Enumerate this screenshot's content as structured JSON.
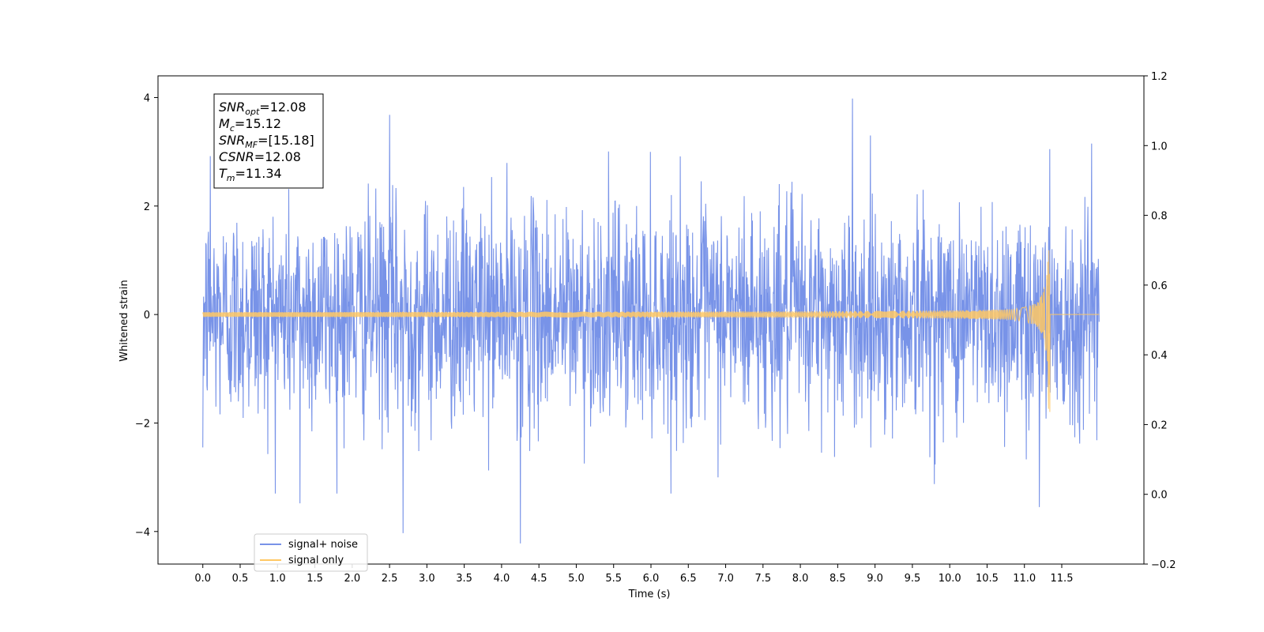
{
  "chart_data": {
    "type": "line",
    "xlabel": "Time (s)",
    "ylabel": "Whitened strain",
    "xlim": [
      -0.6,
      12.6
    ],
    "ylim": [
      -4.6,
      4.4
    ],
    "ylim_right": [
      -0.2,
      1.2
    ],
    "x_ticks": [
      "0.0",
      "0.5",
      "1.0",
      "1.5",
      "2.0",
      "2.5",
      "3.0",
      "3.5",
      "4.0",
      "4.5",
      "5.0",
      "5.5",
      "6.0",
      "6.5",
      "7.0",
      "7.5",
      "8.0",
      "8.5",
      "9.0",
      "9.5",
      "10.0",
      "10.5",
      "11.0",
      "11.5"
    ],
    "y_ticks": [
      "4",
      "2",
      "0",
      "−2",
      "−4"
    ],
    "y_ticks_right": [
      "1.2",
      "1.0",
      "0.8",
      "0.6",
      "0.4",
      "0.2",
      "0.0",
      "−0.2"
    ],
    "grid": false,
    "legend_position": "bottom-left",
    "series": [
      {
        "name": "signal+ noise",
        "color": "#7893e8",
        "description_of_shape": "dense noise approx ±1.3 rms between 0.0 and 12.0 s",
        "max": 3.98,
        "min": -4.22,
        "peaks": [
          [
            0.1,
            2.92
          ],
          [
            2.5,
            3.68
          ],
          [
            8.7,
            3.98
          ],
          [
            11.34,
            3.05
          ],
          [
            11.9,
            3.15
          ]
        ],
        "troughs": [
          [
            0.0,
            -2.45
          ],
          [
            1.3,
            -3.48
          ],
          [
            2.68,
            -4.03
          ],
          [
            4.25,
            -4.22
          ],
          [
            11.2,
            -3.55
          ]
        ]
      },
      {
        "name": "signal only",
        "color": "#ffc864",
        "description_of_shape": "chirp growing in amplitude and frequency, merger at 11.34 s, flat after",
        "merger_time": 11.34,
        "peak_amplitude": 1.82
      }
    ],
    "annotation": {
      "lines": [
        {
          "sym": "SNR",
          "sub": "opt",
          "val": "=12.08"
        },
        {
          "sym": "M",
          "sub": "c",
          "val": "=15.12"
        },
        {
          "sym": "SNR",
          "sub": "MF",
          "val": "=[15.18]"
        },
        {
          "sym": "CSNR",
          "sub": "",
          "val": "=12.08"
        },
        {
          "sym": "T",
          "sub": "m",
          "val": "=11.34"
        }
      ]
    }
  }
}
